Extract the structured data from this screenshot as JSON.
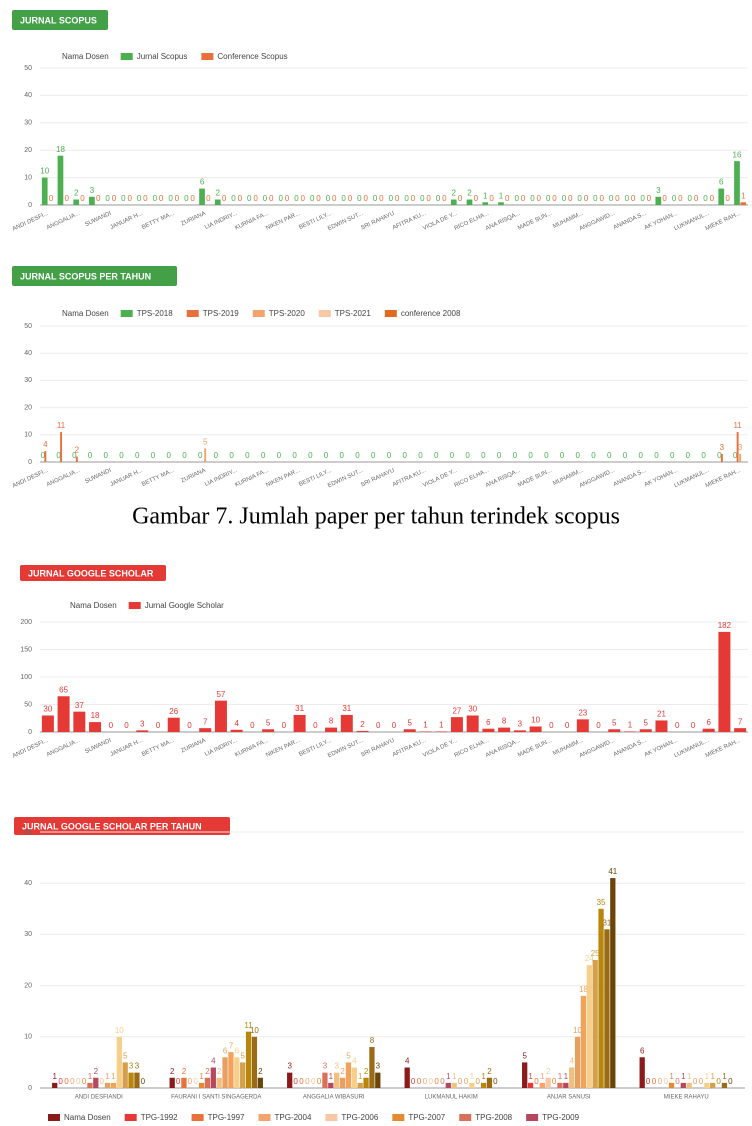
{
  "chart_data": [
    {
      "type": "bar",
      "title": "JURNAL SCOPUS",
      "legend_title": "Nama Dosen",
      "categories": [
        "ANDI DESFI...",
        null,
        "ANGGALIA...",
        null,
        "SUWANDI",
        null,
        "JANUAR H...",
        null,
        "BETTY MA...",
        null,
        "ZURIANA",
        null,
        "LIA INDRIY...",
        null,
        "KURNIA FA...",
        null,
        "NIKEN PAR...",
        null,
        "BESTI LILY...",
        null,
        "EDWIN SUT...",
        null,
        "SRI RAHAYU",
        null,
        "AFITRA KU...",
        null,
        "VIOLA DE Y...",
        null,
        "RICO ELHA...",
        null,
        "ANA RISQA...",
        null,
        "MADE SUN...",
        null,
        "MUHAMM...",
        null,
        "ANGGAWID...",
        null,
        "ANANDA S...",
        null,
        "AK YOHAN...",
        null,
        "LUKMANUL...",
        null,
        "MIEKE RAH..."
      ],
      "series": [
        {
          "name": "Jurnal Scopus",
          "color": "#4caf50",
          "values": [
            10,
            18,
            2,
            3,
            0,
            0,
            0,
            0,
            0,
            0,
            6,
            2,
            0,
            0,
            0,
            0,
            0,
            0,
            0,
            0,
            0,
            0,
            0,
            0,
            0,
            0,
            2,
            2,
            1,
            1,
            0,
            0,
            0,
            0,
            0,
            0,
            0,
            0,
            0,
            3,
            0,
            0,
            0,
            6,
            16
          ]
        },
        {
          "name": "Conference Scopus",
          "color": "#e8703a",
          "values": [
            0,
            0,
            0,
            0,
            0,
            0,
            0,
            0,
            0,
            0,
            0,
            0,
            0,
            0,
            0,
            0,
            0,
            0,
            0,
            0,
            0,
            0,
            0,
            0,
            0,
            0,
            0,
            0,
            0,
            0,
            0,
            0,
            0,
            0,
            0,
            0,
            0,
            0,
            0,
            0,
            0,
            0,
            0,
            0,
            1
          ]
        }
      ],
      "ylim": [
        0,
        50
      ],
      "yticks": [
        0,
        10,
        20,
        30,
        40,
        50
      ],
      "grid": true
    },
    {
      "type": "bar",
      "title": "JURNAL SCOPUS PER TAHUN",
      "legend_title": "Nama Dosen",
      "categories": [
        "ANDI DESFI...",
        null,
        "ANGGALIA...",
        null,
        "SUWANDI",
        null,
        "JANUAR H...",
        null,
        "BETTY MA...",
        null,
        "ZURIANA",
        null,
        "LIA INDRIY...",
        null,
        "KURNIA FA...",
        null,
        "NIKEN PAR...",
        null,
        "BESTI LILY...",
        null,
        "EDWIN SUT...",
        null,
        "SRI RAHAYU",
        null,
        "AFITRA KU...",
        null,
        "VIOLA DE Y...",
        null,
        "RICO ELHA...",
        null,
        "ANA RISQA...",
        null,
        "MADE SUN...",
        null,
        "MUHAMM...",
        null,
        "ANGGAWID...",
        null,
        "ANANDA S...",
        null,
        "AK YOHAN...",
        null,
        "LUKMANUL...",
        null,
        "MIEKE RAH..."
      ],
      "series": [
        {
          "name": "TPS-2018",
          "color": "#4caf50",
          "values": [
            0,
            0,
            0,
            0,
            0,
            0,
            0,
            0,
            0,
            0,
            0,
            0,
            0,
            0,
            0,
            0,
            0,
            0,
            0,
            0,
            0,
            0,
            0,
            0,
            0,
            0,
            0,
            0,
            0,
            0,
            0,
            0,
            0,
            0,
            0,
            0,
            0,
            0,
            0,
            0,
            0,
            0,
            0,
            0,
            0
          ]
        },
        {
          "name": "TPS-2019",
          "color": "#e8703a",
          "values": [
            4,
            11,
            2,
            0,
            0,
            0,
            0,
            0,
            0,
            0,
            0,
            0,
            0,
            0,
            0,
            0,
            0,
            0,
            0,
            0,
            0,
            0,
            0,
            0,
            0,
            0,
            0,
            0,
            0,
            0,
            0,
            0,
            0,
            0,
            0,
            0,
            0,
            0,
            0,
            0,
            0,
            0,
            0,
            3,
            11
          ]
        },
        {
          "name": "TPS-2020",
          "color": "#f4a36b",
          "values": [
            0,
            0,
            0,
            0,
            0,
            0,
            0,
            0,
            0,
            0,
            5,
            0,
            0,
            0,
            0,
            0,
            0,
            0,
            0,
            0,
            0,
            0,
            0,
            0,
            0,
            0,
            0,
            0,
            0,
            0,
            0,
            0,
            0,
            0,
            0,
            0,
            0,
            0,
            0,
            0,
            0,
            0,
            0,
            0,
            3
          ]
        },
        {
          "name": "TPS-2021",
          "color": "#f7c7a6",
          "values": [
            0,
            0,
            0,
            0,
            0,
            0,
            0,
            0,
            0,
            0,
            0,
            0,
            0,
            0,
            0,
            0,
            0,
            0,
            0,
            0,
            0,
            0,
            0,
            0,
            0,
            0,
            0,
            0,
            0,
            0,
            0,
            0,
            0,
            0,
            0,
            0,
            0,
            0,
            0,
            0,
            0,
            0,
            0,
            0,
            0
          ]
        },
        {
          "name": "conference 2008",
          "color": "#e06a1e",
          "values": [
            0,
            0,
            0,
            0,
            0,
            0,
            0,
            0,
            0,
            0,
            0,
            0,
            0,
            0,
            0,
            0,
            0,
            0,
            0,
            0,
            0,
            0,
            0,
            0,
            0,
            0,
            0,
            0,
            0,
            0,
            0,
            0,
            0,
            0,
            0,
            0,
            0,
            0,
            0,
            0,
            0,
            0,
            0,
            0,
            0
          ]
        }
      ],
      "ylim": [
        0,
        50
      ],
      "yticks": [
        0,
        10,
        20,
        30,
        40,
        50
      ],
      "grid": true
    },
    {
      "type": "bar",
      "title": "JURNAL GOOGLE SCHOLAR",
      "legend_title": "Nama Dosen",
      "categories": [
        "ANDI DESFI...",
        null,
        "ANGGALIA...",
        null,
        "SUWANDI",
        null,
        "JANUAR H...",
        null,
        "BETTY MA...",
        null,
        "ZURIANA",
        null,
        "LIA INDRIY...",
        null,
        "KURNIA FA...",
        null,
        "NIKEN PAR...",
        null,
        "BESTI LILY...",
        null,
        "EDWIN SUT...",
        null,
        "SRI RAHAYU",
        null,
        "AFITRA KU...",
        null,
        "VIOLA DE Y...",
        null,
        "RICO ELHA...",
        null,
        "ANA RISQA...",
        null,
        "MADE SUN...",
        null,
        "MUHAMM...",
        null,
        "ANGGAWID...",
        null,
        "ANANDA S...",
        null,
        "AK YOHAN...",
        null,
        "LUKMANUL...",
        null,
        "MIEKE RAH..."
      ],
      "series": [
        {
          "name": "Jurnal Google Scholar",
          "color": "#e53935",
          "values": [
            30,
            65,
            37,
            18,
            0,
            0,
            3,
            0,
            26,
            0,
            7,
            57,
            4,
            0,
            5,
            0,
            31,
            0,
            8,
            31,
            2,
            0,
            0,
            5,
            1,
            1,
            27,
            30,
            6,
            8,
            3,
            10,
            0,
            0,
            23,
            0,
            5,
            1,
            5,
            21,
            0,
            0,
            6,
            182,
            7
          ]
        }
      ],
      "ylim": [
        0,
        200
      ],
      "yticks": [
        0,
        50,
        100,
        150,
        200
      ],
      "grid": true
    },
    {
      "type": "bar",
      "title": "JURNAL GOOGLE SCHOLAR PER TAHUN",
      "categories": [
        "ANDI DESFIANDI",
        "FAURANI I SANTI SINGAGERDA",
        "ANGGALIA WIBASURI",
        "LUKMANUL HAKIM",
        "ANJAR SANUSI",
        "MIEKE RAHAYU"
      ],
      "series": [
        {
          "name": "Nama Dosen",
          "color": "#8b1a1a",
          "values": [
            1,
            2,
            3,
            4,
            5,
            6
          ]
        },
        {
          "name": "TPG-1992",
          "color": "#e53935",
          "values": [
            0,
            0,
            0,
            0,
            1,
            0
          ]
        },
        {
          "name": "TPG-1997",
          "color": "#e8703a",
          "values": [
            0,
            2,
            0,
            0,
            0,
            0
          ]
        },
        {
          "name": "TPG-2004",
          "color": "#f4a36b",
          "values": [
            0,
            0,
            0,
            0,
            1,
            0
          ]
        },
        {
          "name": "TPG-2006",
          "color": "#f7c7a6",
          "values": [
            0,
            0,
            0,
            0,
            2,
            0
          ]
        },
        {
          "name": "TPG-2007",
          "color": "#e58a2e",
          "values": [
            0,
            1,
            0,
            0,
            0,
            1
          ]
        },
        {
          "name": "TPG-2008",
          "color": "#d9705a",
          "values": [
            1,
            2,
            3,
            0,
            1,
            0
          ]
        },
        {
          "name": "TPG-2009",
          "color": "#b5485e",
          "values": [
            2,
            4,
            1,
            1,
            1,
            1
          ]
        },
        {
          "color": "#f0c080",
          "values": [
            0,
            2,
            3,
            1,
            4,
            1
          ]
        },
        {
          "color": "#e8a060",
          "values": [
            1,
            6,
            2,
            0,
            10,
            0
          ]
        },
        {
          "color": "#f2a25a",
          "values": [
            1,
            7,
            5,
            0,
            18,
            0
          ]
        },
        {
          "color": "#f6d08a",
          "values": [
            10,
            6,
            4,
            1,
            24,
            1
          ]
        },
        {
          "color": "#d4a04c",
          "values": [
            5,
            5,
            1,
            0,
            25,
            1
          ]
        },
        {
          "color": "#b8860b",
          "values": [
            3,
            11,
            2,
            1,
            35,
            0
          ]
        },
        {
          "color": "#9a6b16",
          "values": [
            3,
            10,
            8,
            2,
            31,
            1
          ]
        },
        {
          "color": "#6b4508",
          "values": [
            0,
            2,
            3,
            0,
            41,
            0
          ]
        }
      ],
      "ylim": [
        0,
        50
      ],
      "yticks": [
        0,
        10,
        20,
        30,
        40,
        50
      ],
      "grid": true
    }
  ],
  "caption": "Gambar 7. Jumlah paper per tahun terindek scopus"
}
